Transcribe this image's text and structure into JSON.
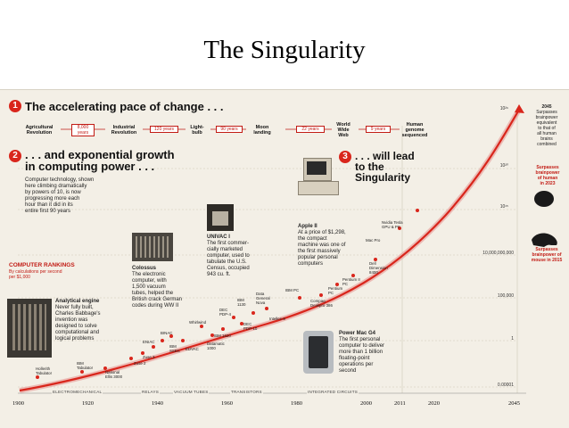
{
  "slide_title": "The Singularity",
  "section1": {
    "number": "1",
    "heading": "The accelerating pace of change . . .",
    "timeline": [
      {
        "label": "Agricultural Revolution",
        "gap": "8,000 years"
      },
      {
        "label": "Industrial Revolution",
        "gap": "120 years"
      },
      {
        "label": "Light-bulb",
        "gap": "90 years"
      },
      {
        "label": "Moon landing",
        "gap": "22 years"
      },
      {
        "label": "World Wide Web",
        "gap": "9 years"
      },
      {
        "label": "Human genome sequenced",
        "gap": ""
      }
    ]
  },
  "section2": {
    "number": "2",
    "heading_line1": ". . . and exponential growth",
    "heading_line2": "in computing power . . .",
    "body": [
      "Computer technology, shown",
      "here climbing dramatically",
      "by powers of 10, is now",
      "progressing more each",
      "hour than it did in its",
      "entire first 90 years"
    ]
  },
  "section3": {
    "number": "3",
    "heading_line1": ". . . will lead",
    "heading_line2": "to the",
    "heading_line3": "Singularity"
  },
  "rankings": {
    "title": "COMPUTER RANKINGS",
    "subtitle_line1": "By calculations per second",
    "subtitle_line2": "per $1,000"
  },
  "callouts": {
    "analytical": {
      "title": "Analytical engine",
      "body": [
        "Never fully built,",
        "Charles Babbage's",
        "invention was",
        "designed to solve",
        "computational and",
        "logical problems"
      ]
    },
    "colossus": {
      "title": "Colossus",
      "body": [
        "The electronic",
        "computer, with",
        "1,500 vacuum",
        "tubes, helped the",
        "British crack German",
        "codes during WW II"
      ]
    },
    "univac": {
      "title": "UNIVAC I",
      "body": [
        "The first commer-",
        "cially marketed",
        "computer, used to",
        "tabulate the U.S.",
        "Census, occupied",
        "943 cu. ft."
      ]
    },
    "apple": {
      "title": "Apple II",
      "body": [
        "At a price of $1,298,",
        "the compact",
        "machine was one of",
        "the first massively",
        "popular personal",
        "computers"
      ]
    },
    "powermac": {
      "title": "Power Mac G4",
      "body": [
        "The first personal",
        "computer to deliver",
        "more than 1 billion",
        "floating-point",
        "operations per",
        "second"
      ]
    }
  },
  "machines": [
    "Hollerith Tabulator",
    "IBM Tabulator",
    "National Ellis 3000",
    "Zuse 2",
    "Zuse 3",
    "ENIAC",
    "BINAC",
    "IBM SSEC",
    "EDVAC",
    "Whirlwind",
    "IBM 1620",
    "Datamatic 1000",
    "DEC PDP-4",
    "IBM 1130",
    "DEC PDP-10",
    "Data General Nova",
    "Intellec-8",
    "IBM PC",
    "Compaq Deskpro 386",
    "Pentium PC",
    "Pentium II PC",
    "Dell Dimension 8400",
    "Mac Pro",
    "Nvidia Tesla GPU & PC"
  ],
  "axis": {
    "y_values": [
      "10²⁶",
      "10²⁰",
      "10¹⁵",
      "10,000,000,000",
      "100,000",
      "1",
      "0.00001"
    ],
    "x_years": [
      "1900",
      "1920",
      "1940",
      "1960",
      "1980",
      "2000",
      "2011",
      "2020",
      "2045"
    ],
    "eras": [
      "ELECTROMECHANICAL",
      "RELAYS",
      "VACUUM TUBES",
      "TRANSISTORS",
      "INTEGRATED CIRCUITS"
    ]
  },
  "right_notes": {
    "n2045": [
      "2045",
      "Surpasses",
      "brainpower",
      "equivalent",
      "to that of",
      "all human",
      "brains",
      "combined"
    ],
    "n2023": [
      "Surpasses",
      "brainpower",
      "of human",
      "in 2023"
    ],
    "n2015": [
      "Surpasses",
      "brainpower of",
      "mouse in 2015"
    ]
  },
  "colors": {
    "accent": "#d9261c",
    "paper": "#f3efe6"
  }
}
